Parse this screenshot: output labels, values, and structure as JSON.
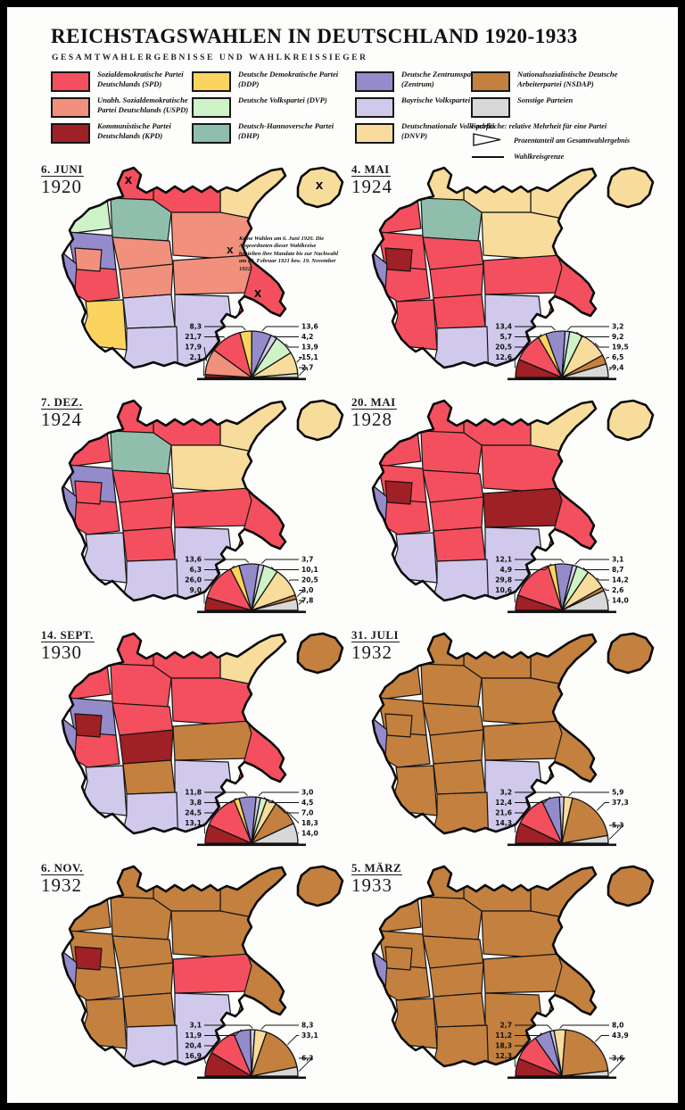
{
  "title": "REICHSTAGSWAHLEN IN DEUTSCHLAND 1920-1933",
  "subtitle": "GESAMTWAHLERGEBNISSE UND WAHLKREISSIEGER",
  "background": "#fdfdfc",
  "frame_color": "#000000",
  "parties": {
    "spd": {
      "label": "Sozialdemokratische Partei Deutschlands (SPD)",
      "color": "#f44f5e"
    },
    "uspd": {
      "label": "Unabh. Sozialdemokratische Partei Deutschlands (USPD)",
      "color": "#f1907c"
    },
    "kpd": {
      "label": "Kommunistische Partei Deutschlands (KPD)",
      "color": "#9f2025"
    },
    "ddp": {
      "label": "Deutsche Demokratische Partei (DDP)",
      "color": "#fbd45f"
    },
    "dvp": {
      "label": "Deutsche Volkspartei (DVP)",
      "color": "#cdf3c6"
    },
    "dhp": {
      "label": "Deutsch-Hannoversche Partei (DHP)",
      "color": "#8fbead"
    },
    "zentrum": {
      "label": "Deutsche Zentrumspartei (Zentrum)",
      "color": "#948bcb"
    },
    "bvp": {
      "label": "Bayrische Volkspartei (BVP)",
      "color": "#d0c9ec"
    },
    "dnvp": {
      "label": "Deutschnationale Volkspartei (DNVP)",
      "color": "#f8dc9c"
    },
    "nsdap": {
      "label": "Nationalsozialistische Deutsche Arbeiterpartei (NSDAP)",
      "color": "#c3803f"
    },
    "other": {
      "label": "Sonstige Parteien",
      "color": "#d8d8d8"
    }
  },
  "legend": {
    "columns": [
      [
        "spd",
        "uspd",
        "kpd"
      ],
      [
        "ddp",
        "dvp",
        "dhp"
      ],
      [
        "zentrum",
        "bvp",
        "dnvp"
      ],
      [
        "nsdap",
        "other"
      ]
    ],
    "note_area": "Farbfläche: relative Mehrheit für eine Partei",
    "note_triangle": "Prozentanteil am Gesamtwahlergebnis",
    "note_line": "Wahlkreisgrenze"
  },
  "annotation_1920": "Keine Wahlen am 6. Juni 1920. Die Abgeordneten dieser Wahlkreise behielten ihre Mandate bis zur Nachwahl am 20. Februar 1921 bzw. 19. November 1922.",
  "maps": [
    {
      "date": "6. JUNI",
      "year": "1920",
      "pie_index": 0,
      "has_annotation": true,
      "no_election_marks": [
        "schleswig",
        "ostpreussen",
        "schlesien"
      ],
      "regions": {
        "schleswig": "spd",
        "mecklenburg": "spd",
        "pommern": "dnvp",
        "ostpreussen": "dnvp",
        "weserems": "dvp",
        "hannover": "dhp",
        "brandenburg": "uspd",
        "magdeburg": "uspd",
        "westfalen": "zentrum",
        "hessen": "spd",
        "thueringen": "uspd",
        "sachsen": "uspd",
        "schlesien": "spd",
        "rheinland": "zentrum",
        "ruhr": "uspd",
        "moselland": "dvp",
        "franken": "bvp",
        "wuerttemberg": "ddp",
        "baden": "zentrum",
        "niederbayern": "bvp",
        "oberbayern": "bvp"
      }
    },
    {
      "date": "4. MAI",
      "year": "1924",
      "pie_index": 1,
      "has_annotation": false,
      "regions": {
        "schleswig": "dnvp",
        "mecklenburg": "dnvp",
        "pommern": "dnvp",
        "ostpreussen": "dnvp",
        "weserems": "spd",
        "hannover": "dhp",
        "brandenburg": "dnvp",
        "magdeburg": "spd",
        "westfalen": "spd",
        "hessen": "spd",
        "thueringen": "spd",
        "sachsen": "spd",
        "schlesien": "spd",
        "rheinland": "zentrum",
        "ruhr": "kpd",
        "moselland": "zentrum",
        "franken": "spd",
        "wuerttemberg": "spd",
        "baden": "zentrum",
        "niederbayern": "bvp",
        "oberbayern": "bvp"
      }
    },
    {
      "date": "7. DEZ.",
      "year": "1924",
      "pie_index": 2,
      "has_annotation": false,
      "regions": {
        "schleswig": "spd",
        "mecklenburg": "spd",
        "pommern": "dnvp",
        "ostpreussen": "dnvp",
        "weserems": "spd",
        "hannover": "dhp",
        "brandenburg": "dnvp",
        "magdeburg": "spd",
        "westfalen": "zentrum",
        "hessen": "spd",
        "thueringen": "spd",
        "sachsen": "spd",
        "schlesien": "spd",
        "rheinland": "zentrum",
        "ruhr": "spd",
        "moselland": "zentrum",
        "franken": "spd",
        "wuerttemberg": "bvp",
        "baden": "bvp",
        "niederbayern": "bvp",
        "oberbayern": "bvp"
      }
    },
    {
      "date": "20. MAI",
      "year": "1928",
      "pie_index": 3,
      "has_annotation": false,
      "regions": {
        "schleswig": "spd",
        "mecklenburg": "spd",
        "pommern": "dnvp",
        "ostpreussen": "dnvp",
        "weserems": "spd",
        "hannover": "spd",
        "brandenburg": "spd",
        "magdeburg": "spd",
        "westfalen": "spd",
        "hessen": "spd",
        "thueringen": "spd",
        "sachsen": "kpd",
        "schlesien": "spd",
        "rheinland": "zentrum",
        "ruhr": "kpd",
        "moselland": "zentrum",
        "franken": "spd",
        "wuerttemberg": "bvp",
        "baden": "spd",
        "niederbayern": "bvp",
        "oberbayern": "bvp"
      }
    },
    {
      "date": "14. SEPT.",
      "year": "1930",
      "pie_index": 4,
      "has_annotation": false,
      "regions": {
        "schleswig": "spd",
        "mecklenburg": "spd",
        "pommern": "dnvp",
        "ostpreussen": "nsdap",
        "weserems": "spd",
        "hannover": "spd",
        "brandenburg": "spd",
        "magdeburg": "spd",
        "westfalen": "zentrum",
        "hessen": "spd",
        "thueringen": "kpd",
        "sachsen": "nsdap",
        "schlesien": "spd",
        "rheinland": "zentrum",
        "ruhr": "kpd",
        "moselland": "zentrum",
        "franken": "nsdap",
        "wuerttemberg": "bvp",
        "baden": "spd",
        "niederbayern": "bvp",
        "oberbayern": "bvp"
      }
    },
    {
      "date": "31. JULI",
      "year": "1932",
      "pie_index": 5,
      "has_annotation": false,
      "regions": {
        "schleswig": "nsdap",
        "mecklenburg": "nsdap",
        "pommern": "nsdap",
        "ostpreussen": "nsdap",
        "weserems": "nsdap",
        "hannover": "nsdap",
        "brandenburg": "nsdap",
        "magdeburg": "nsdap",
        "westfalen": "nsdap",
        "hessen": "nsdap",
        "thueringen": "nsdap",
        "sachsen": "nsdap",
        "schlesien": "nsdap",
        "rheinland": "zentrum",
        "ruhr": "nsdap",
        "moselland": "bvp",
        "franken": "nsdap",
        "wuerttemberg": "nsdap",
        "baden": "nsdap",
        "niederbayern": "bvp",
        "oberbayern": "nsdap"
      }
    },
    {
      "date": "6. NOV.",
      "year": "1932",
      "pie_index": 6,
      "has_annotation": false,
      "regions": {
        "schleswig": "nsdap",
        "mecklenburg": "nsdap",
        "pommern": "nsdap",
        "ostpreussen": "nsdap",
        "weserems": "nsdap",
        "hannover": "nsdap",
        "brandenburg": "nsdap",
        "magdeburg": "nsdap",
        "westfalen": "nsdap",
        "hessen": "nsdap",
        "thueringen": "nsdap",
        "sachsen": "spd",
        "schlesien": "nsdap",
        "rheinland": "zentrum",
        "ruhr": "kpd",
        "moselland": "bvp",
        "franken": "nsdap",
        "wuerttemberg": "nsdap",
        "baden": "nsdap",
        "niederbayern": "bvp",
        "oberbayern": "bvp"
      }
    },
    {
      "date": "5. MÄRZ",
      "year": "1933",
      "pie_index": 7,
      "has_annotation": false,
      "regions": {
        "schleswig": "nsdap",
        "mecklenburg": "nsdap",
        "pommern": "nsdap",
        "ostpreussen": "nsdap",
        "weserems": "nsdap",
        "hannover": "nsdap",
        "brandenburg": "nsdap",
        "magdeburg": "nsdap",
        "westfalen": "nsdap",
        "hessen": "nsdap",
        "thueringen": "nsdap",
        "sachsen": "nsdap",
        "schlesien": "nsdap",
        "rheinland": "zentrum",
        "ruhr": "nsdap",
        "moselland": "bvp",
        "franken": "nsdap",
        "wuerttemberg": "nsdap",
        "baden": "nsdap",
        "niederbayern": "nsdap",
        "oberbayern": "nsdap"
      }
    }
  ],
  "chart_data": [
    {
      "type": "pie",
      "shape": "semicircle",
      "unit": "%",
      "title": "6. JUNI 1920",
      "segments": [
        {
          "party": "kpd",
          "value": 2.1,
          "label": "2,1"
        },
        {
          "party": "uspd",
          "value": 17.9,
          "label": "17,9"
        },
        {
          "party": "spd",
          "value": 21.7,
          "label": "21,7"
        },
        {
          "party": "ddp",
          "value": 8.3,
          "label": "8,3"
        },
        {
          "party": "zentrum",
          "value": 13.6,
          "label": "13,6"
        },
        {
          "party": "bvp",
          "value": 4.2,
          "label": "4,2"
        },
        {
          "party": "dvp",
          "value": 13.9,
          "label": "13,9"
        },
        {
          "party": "dnvp",
          "value": 15.1,
          "label": "15,1"
        },
        {
          "party": "other",
          "value": 2.7,
          "label": "2,7"
        }
      ],
      "left_labels": [
        "ddp",
        "spd",
        "uspd",
        "kpd"
      ],
      "right_labels": [
        "zentrum",
        "bvp",
        "dvp",
        "dnvp",
        "other"
      ]
    },
    {
      "type": "pie",
      "shape": "semicircle",
      "unit": "%",
      "title": "4. MAI 1924",
      "segments": [
        {
          "party": "kpd",
          "value": 12.6,
          "label": "12,6"
        },
        {
          "party": "spd",
          "value": 20.5,
          "label": "20,5"
        },
        {
          "party": "ddp",
          "value": 5.7,
          "label": "5,7"
        },
        {
          "party": "zentrum",
          "value": 13.4,
          "label": "13,4"
        },
        {
          "party": "bvp",
          "value": 3.2,
          "label": "3,2"
        },
        {
          "party": "dvp",
          "value": 9.2,
          "label": "9,2"
        },
        {
          "party": "dnvp",
          "value": 19.5,
          "label": "19,5"
        },
        {
          "party": "nsdap",
          "value": 6.5,
          "label": "6,5"
        },
        {
          "party": "other",
          "value": 9.4,
          "label": "9,4"
        }
      ],
      "left_labels": [
        "zentrum",
        "ddp",
        "spd",
        "kpd"
      ],
      "right_labels": [
        "bvp",
        "dvp",
        "dnvp",
        "nsdap",
        "other"
      ]
    },
    {
      "type": "pie",
      "shape": "semicircle",
      "unit": "%",
      "title": "7. DEZ. 1924",
      "segments": [
        {
          "party": "kpd",
          "value": 9.0,
          "label": "9,0"
        },
        {
          "party": "spd",
          "value": 26.0,
          "label": "26,0"
        },
        {
          "party": "ddp",
          "value": 6.3,
          "label": "6,3"
        },
        {
          "party": "zentrum",
          "value": 13.6,
          "label": "13,6"
        },
        {
          "party": "bvp",
          "value": 3.7,
          "label": "3,7"
        },
        {
          "party": "dvp",
          "value": 10.1,
          "label": "10,1"
        },
        {
          "party": "dnvp",
          "value": 20.5,
          "label": "20,5"
        },
        {
          "party": "nsdap",
          "value": 3.0,
          "label": "3,0"
        },
        {
          "party": "other",
          "value": 7.8,
          "label": "7,8"
        }
      ],
      "left_labels": [
        "zentrum",
        "ddp",
        "spd",
        "kpd"
      ],
      "right_labels": [
        "bvp",
        "dvp",
        "dnvp",
        "nsdap",
        "other"
      ]
    },
    {
      "type": "pie",
      "shape": "semicircle",
      "unit": "%",
      "title": "20. MAI 1928",
      "segments": [
        {
          "party": "kpd",
          "value": 10.6,
          "label": "10,6"
        },
        {
          "party": "spd",
          "value": 29.8,
          "label": "29,8"
        },
        {
          "party": "ddp",
          "value": 4.9,
          "label": "4,9"
        },
        {
          "party": "zentrum",
          "value": 12.1,
          "label": "12,1"
        },
        {
          "party": "bvp",
          "value": 3.1,
          "label": "3,1"
        },
        {
          "party": "dvp",
          "value": 8.7,
          "label": "8,7"
        },
        {
          "party": "dnvp",
          "value": 14.2,
          "label": "14,2"
        },
        {
          "party": "nsdap",
          "value": 2.6,
          "label": "2,6"
        },
        {
          "party": "other",
          "value": 14.0,
          "label": "14,0"
        }
      ],
      "left_labels": [
        "zentrum",
        "ddp",
        "spd",
        "kpd"
      ],
      "right_labels": [
        "bvp",
        "dvp",
        "dnvp",
        "nsdap",
        "other"
      ]
    },
    {
      "type": "pie",
      "shape": "semicircle",
      "unit": "%",
      "title": "14. SEPT. 1930",
      "segments": [
        {
          "party": "kpd",
          "value": 13.1,
          "label": "13,1"
        },
        {
          "party": "spd",
          "value": 24.5,
          "label": "24,5"
        },
        {
          "party": "ddp",
          "value": 3.8,
          "label": "3,8"
        },
        {
          "party": "zentrum",
          "value": 11.8,
          "label": "11,8"
        },
        {
          "party": "bvp",
          "value": 3.0,
          "label": "3,0"
        },
        {
          "party": "dvp",
          "value": 4.5,
          "label": "4,5"
        },
        {
          "party": "dnvp",
          "value": 7.0,
          "label": "7,0"
        },
        {
          "party": "nsdap",
          "value": 18.3,
          "label": "18,3"
        },
        {
          "party": "other",
          "value": 14.0,
          "label": "14,0"
        }
      ],
      "left_labels": [
        "zentrum",
        "ddp",
        "spd",
        "kpd"
      ],
      "right_labels": [
        "bvp",
        "dvp",
        "dnvp",
        "nsdap",
        "other"
      ]
    },
    {
      "type": "pie",
      "shape": "semicircle",
      "unit": "%",
      "title": "31. JULI 1932",
      "segments": [
        {
          "party": "kpd",
          "value": 14.3,
          "label": "14,3"
        },
        {
          "party": "spd",
          "value": 21.6,
          "label": "21,6"
        },
        {
          "party": "zentrum",
          "value": 12.4,
          "label": "12,4"
        },
        {
          "party": "bvp",
          "value": 3.2,
          "label": "3,2"
        },
        {
          "party": "dnvp",
          "value": 5.9,
          "label": "5,9"
        },
        {
          "party": "nsdap",
          "value": 37.3,
          "label": "37,3"
        },
        {
          "party": "other",
          "value": 5.3,
          "label": "5,3"
        }
      ],
      "left_labels": [
        "bvp",
        "zentrum",
        "spd",
        "kpd"
      ],
      "right_labels": [
        "dnvp",
        "nsdap",
        "other"
      ]
    },
    {
      "type": "pie",
      "shape": "semicircle",
      "unit": "%",
      "title": "6. NOV. 1932",
      "segments": [
        {
          "party": "kpd",
          "value": 16.9,
          "label": "16,9"
        },
        {
          "party": "spd",
          "value": 20.4,
          "label": "20,4"
        },
        {
          "party": "zentrum",
          "value": 11.9,
          "label": "11,9"
        },
        {
          "party": "bvp",
          "value": 3.1,
          "label": "3,1"
        },
        {
          "party": "dnvp",
          "value": 8.3,
          "label": "8,3"
        },
        {
          "party": "nsdap",
          "value": 33.1,
          "label": "33,1"
        },
        {
          "party": "other",
          "value": 6.3,
          "label": "6,3"
        }
      ],
      "left_labels": [
        "bvp",
        "zentrum",
        "spd",
        "kpd"
      ],
      "right_labels": [
        "dnvp",
        "nsdap",
        "other"
      ]
    },
    {
      "type": "pie",
      "shape": "semicircle",
      "unit": "%",
      "title": "5. MÄRZ 1933",
      "segments": [
        {
          "party": "kpd",
          "value": 12.3,
          "label": "12,3"
        },
        {
          "party": "spd",
          "value": 18.3,
          "label": "18,3"
        },
        {
          "party": "zentrum",
          "value": 11.2,
          "label": "11,2"
        },
        {
          "party": "bvp",
          "value": 2.7,
          "label": "2,7"
        },
        {
          "party": "dnvp",
          "value": 8.0,
          "label": "8,0"
        },
        {
          "party": "nsdap",
          "value": 43.9,
          "label": "43,9"
        },
        {
          "party": "other",
          "value": 3.6,
          "label": "3,6"
        }
      ],
      "left_labels": [
        "bvp",
        "zentrum",
        "spd",
        "kpd"
      ],
      "right_labels": [
        "dnvp",
        "nsdap",
        "other"
      ]
    }
  ]
}
